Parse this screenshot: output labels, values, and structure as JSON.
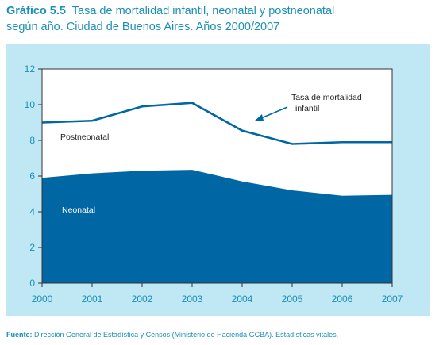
{
  "title": {
    "label": "Gráfico 5.5",
    "line1": "Tasa de mortalidad  infantil, neonatal y postneonatal",
    "line2": "según año. Ciudad de Buenos Aires. Años 2000/2007"
  },
  "source": {
    "label": "Fuente:",
    "text": "Dirección General de Estadística y Censos (Ministerio de Hacienda GCBA). Estadísticas vitales."
  },
  "colors": {
    "title": "#1a8fb5",
    "frame_background": "#bfe8f4",
    "neonatal_fill": "#0066a4",
    "postneonatal_fill": "#ffffff",
    "infantil_line": "#0066a4",
    "axis_text": "#1a8fb5"
  },
  "chart_data": {
    "type": "area",
    "x": [
      "2000",
      "2001",
      "2002",
      "2003",
      "2004",
      "2005",
      "2006",
      "2007"
    ],
    "ylim": [
      0,
      12
    ],
    "yticks": [
      0,
      2,
      4,
      6,
      8,
      10,
      12
    ],
    "grid": false,
    "series": [
      {
        "name": "Neonatal",
        "values": [
          5.9,
          6.15,
          6.3,
          6.35,
          5.7,
          5.2,
          4.9,
          4.95
        ]
      },
      {
        "name": "Postneonatal",
        "values": [
          3.1,
          2.95,
          3.6,
          3.75,
          2.85,
          2.6,
          3.0,
          2.95
        ]
      },
      {
        "name": "Tasa de mortalidad infantil",
        "values": [
          9.0,
          9.1,
          9.9,
          10.1,
          8.55,
          7.8,
          7.9,
          7.9
        ]
      }
    ],
    "annotations": {
      "postneonatal": "Postneonatal",
      "neonatal": "Neonatal",
      "infantil_line1": "Tasa de mortalidad",
      "infantil_line2": "infantil"
    }
  }
}
